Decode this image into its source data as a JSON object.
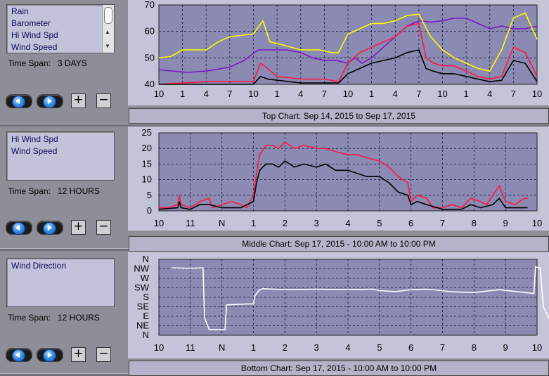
{
  "panels": [
    {
      "items": [
        "Rain",
        "Barometer",
        "Hi Wind Spd",
        "Wind Speed"
      ],
      "timespan_label": "Time Span:",
      "timespan_value": "3 DAYS",
      "chart_label": "Top Chart:  Sep 14, 2015  to  Sep 17, 2015"
    },
    {
      "items": [
        "Hi Wind Spd",
        "Wind Speed"
      ],
      "timespan_label": "Time Span:",
      "timespan_value": "12 HOURS",
      "chart_label": "Middle Chart:  Sep 17, 2015 - 10:00 AM  to  10:00 PM"
    },
    {
      "items": [
        "Wind Direction"
      ],
      "timespan_label": "Time Span:",
      "timespan_value": "12 HOURS",
      "chart_label": "Bottom Chart:  Sep 17, 2015 - 10:00 AM  to  10:00 PM"
    }
  ],
  "buttons": {
    "plus": "+",
    "minus": "−"
  },
  "icons": [
    "back-arrow-icon",
    "forward-arrow-icon"
  ],
  "colors": {
    "hi_wind": "#ff1744",
    "wind_speed": "#000000",
    "barometer": "#ffff00",
    "rain": "#1a1aff",
    "purple": "#7a18c8",
    "direction": "#ffffff"
  },
  "chart_data": [
    {
      "type": "line",
      "x_ticks": [
        "10",
        "1",
        "4",
        "7",
        "10",
        "1",
        "4",
        "7",
        "10",
        "1",
        "4",
        "7",
        "10",
        "1",
        "4",
        "7",
        "10"
      ],
      "ylim": [
        40,
        70
      ],
      "y_ticks": [
        40,
        50,
        60,
        70
      ],
      "grid": true,
      "series": [
        {
          "color": "#7a18c8",
          "points": [
            [
              0,
              45.5
            ],
            [
              0.6,
              45
            ],
            [
              1.2,
              44.5
            ],
            [
              2,
              45
            ],
            [
              3,
              46.5
            ],
            [
              3.6,
              49
            ],
            [
              4.2,
              53
            ],
            [
              4.8,
              53
            ],
            [
              5.4,
              53
            ],
            [
              6,
              52
            ],
            [
              6.5,
              50
            ],
            [
              7,
              49
            ],
            [
              7.5,
              49
            ],
            [
              8,
              48
            ],
            [
              8.3,
              50
            ],
            [
              8.6,
              48
            ],
            [
              9,
              50
            ],
            [
              9.5,
              54
            ],
            [
              10,
              58
            ],
            [
              10.5,
              62
            ],
            [
              11,
              64
            ],
            [
              11.5,
              63.5
            ],
            [
              12,
              64
            ],
            [
              12.5,
              65
            ],
            [
              13,
              65
            ],
            [
              13.5,
              63
            ],
            [
              14,
              61
            ],
            [
              14.5,
              62
            ],
            [
              15,
              61
            ],
            [
              15.5,
              61
            ],
            [
              16,
              62
            ]
          ]
        },
        {
          "color": "#ffff00",
          "points": [
            [
              0,
              50
            ],
            [
              0.5,
              50.5
            ],
            [
              1,
              53
            ],
            [
              1.5,
              53
            ],
            [
              2,
              53
            ],
            [
              2.5,
              56
            ],
            [
              3,
              58
            ],
            [
              3.5,
              58.5
            ],
            [
              4,
              59
            ],
            [
              4.4,
              64
            ],
            [
              4.7,
              56
            ],
            [
              5.2,
              55
            ],
            [
              6,
              53
            ],
            [
              6.8,
              53
            ],
            [
              7.3,
              52
            ],
            [
              7.6,
              52
            ],
            [
              8,
              59
            ],
            [
              8.5,
              61
            ],
            [
              9,
              63
            ],
            [
              9.5,
              63
            ],
            [
              10,
              64
            ],
            [
              10.5,
              66
            ],
            [
              11,
              66.5
            ],
            [
              11.5,
              58
            ],
            [
              12,
              53
            ],
            [
              12.5,
              50
            ],
            [
              13,
              48
            ],
            [
              13.5,
              46
            ],
            [
              14,
              45
            ],
            [
              14.5,
              53
            ],
            [
              15,
              65
            ],
            [
              15.5,
              67
            ],
            [
              16,
              57
            ]
          ]
        },
        {
          "color": "#ff1744",
          "points": [
            [
              0,
              40
            ],
            [
              1,
              40.5
            ],
            [
              2,
              41
            ],
            [
              3,
              41
            ],
            [
              4,
              41
            ],
            [
              4.3,
              48
            ],
            [
              4.6,
              46
            ],
            [
              5,
              43
            ],
            [
              6,
              42
            ],
            [
              7,
              42
            ],
            [
              7.6,
              41
            ],
            [
              8,
              48
            ],
            [
              8.5,
              52
            ],
            [
              9,
              54
            ],
            [
              9.5,
              56
            ],
            [
              10,
              58
            ],
            [
              10.5,
              62
            ],
            [
              11,
              63
            ],
            [
              11.3,
              50
            ],
            [
              11.6,
              48
            ],
            [
              12,
              47
            ],
            [
              12.5,
              47
            ],
            [
              13,
              45
            ],
            [
              13.5,
              43
            ],
            [
              14,
              42
            ],
            [
              14.5,
              43
            ],
            [
              15,
              54
            ],
            [
              15.5,
              52
            ],
            [
              16,
              43
            ]
          ]
        },
        {
          "color": "#000000",
          "points": [
            [
              0,
              40
            ],
            [
              2,
              40
            ],
            [
              4,
              40
            ],
            [
              4.3,
              43
            ],
            [
              4.6,
              42
            ],
            [
              6,
              40.5
            ],
            [
              7.6,
              40.5
            ],
            [
              8,
              44
            ],
            [
              8.5,
              46
            ],
            [
              9,
              48
            ],
            [
              9.5,
              49
            ],
            [
              10,
              50
            ],
            [
              10.5,
              52
            ],
            [
              11,
              53
            ],
            [
              11.3,
              46
            ],
            [
              11.6,
              45
            ],
            [
              12,
              44
            ],
            [
              12.5,
              44
            ],
            [
              13,
              43
            ],
            [
              13.5,
              42
            ],
            [
              14,
              41
            ],
            [
              14.5,
              41.5
            ],
            [
              15,
              49
            ],
            [
              15.5,
              48
            ],
            [
              16,
              41
            ]
          ]
        }
      ]
    },
    {
      "type": "line",
      "x_ticks": [
        "10",
        "11",
        "N",
        "1",
        "2",
        "3",
        "4",
        "5",
        "6",
        "7",
        "8",
        "9",
        "10"
      ],
      "ylim": [
        0,
        25
      ],
      "y_ticks": [
        0,
        5,
        10,
        15,
        20,
        25
      ],
      "grid": true,
      "series": [
        {
          "color": "#ff1744",
          "points": [
            [
              0,
              1
            ],
            [
              0.3,
              1
            ],
            [
              0.6,
              2
            ],
            [
              0.65,
              5
            ],
            [
              0.7,
              2
            ],
            [
              1,
              1
            ],
            [
              1.3,
              3
            ],
            [
              1.6,
              4
            ],
            [
              1.7,
              1
            ],
            [
              2,
              2
            ],
            [
              2.3,
              3
            ],
            [
              2.6,
              2
            ],
            [
              2.8,
              1
            ],
            [
              3,
              5
            ],
            [
              3.1,
              12
            ],
            [
              3.2,
              18
            ],
            [
              3.4,
              21
            ],
            [
              3.6,
              21
            ],
            [
              3.8,
              20
            ],
            [
              4,
              22
            ],
            [
              4.3,
              20
            ],
            [
              4.6,
              21
            ],
            [
              5,
              20
            ],
            [
              5.3,
              20
            ],
            [
              5.6,
              19
            ],
            [
              6,
              18
            ],
            [
              6.3,
              18
            ],
            [
              6.6,
              17
            ],
            [
              7,
              16
            ],
            [
              7.3,
              14
            ],
            [
              7.6,
              11
            ],
            [
              7.9,
              9
            ],
            [
              8,
              3
            ],
            [
              8.2,
              5
            ],
            [
              8.5,
              4
            ],
            [
              8.7,
              1
            ],
            [
              9,
              1
            ],
            [
              9.3,
              2
            ],
            [
              9.6,
              1
            ],
            [
              9.9,
              4
            ],
            [
              10.2,
              3
            ],
            [
              10.4,
              2
            ],
            [
              10.6,
              5
            ],
            [
              10.8,
              8
            ],
            [
              11,
              3
            ],
            [
              11.3,
              2
            ],
            [
              11.6,
              4
            ],
            [
              11.7,
              4
            ]
          ]
        },
        {
          "color": "#000000",
          "points": [
            [
              0,
              0.5
            ],
            [
              0.6,
              1
            ],
            [
              0.65,
              3
            ],
            [
              0.7,
              1
            ],
            [
              1,
              0.5
            ],
            [
              1.3,
              2
            ],
            [
              1.6,
              2
            ],
            [
              2,
              1
            ],
            [
              2.6,
              1
            ],
            [
              3,
              3
            ],
            [
              3.1,
              9
            ],
            [
              3.2,
              13
            ],
            [
              3.4,
              15
            ],
            [
              3.6,
              15
            ],
            [
              3.8,
              14
            ],
            [
              4,
              16
            ],
            [
              4.3,
              14
            ],
            [
              4.6,
              15
            ],
            [
              5,
              14
            ],
            [
              5.3,
              15
            ],
            [
              5.6,
              13
            ],
            [
              6,
              13
            ],
            [
              6.3,
              12
            ],
            [
              6.6,
              11
            ],
            [
              7,
              11
            ],
            [
              7.3,
              9
            ],
            [
              7.6,
              6
            ],
            [
              7.9,
              5
            ],
            [
              8,
              2
            ],
            [
              8.2,
              3
            ],
            [
              8.5,
              2
            ],
            [
              9,
              0.5
            ],
            [
              9.6,
              0.5
            ],
            [
              9.9,
              2
            ],
            [
              10.2,
              1
            ],
            [
              10.6,
              2
            ],
            [
              10.8,
              4
            ],
            [
              11,
              1
            ],
            [
              11.5,
              1
            ],
            [
              11.7,
              1
            ]
          ]
        }
      ]
    },
    {
      "type": "line",
      "x_ticks": [
        "10",
        "11",
        "N",
        "1",
        "2",
        "3",
        "4",
        "5",
        "6",
        "7",
        "8",
        "9",
        "10"
      ],
      "y_ticks": [
        "N",
        "NW",
        "W",
        "SW",
        "S",
        "SE",
        "E",
        "NE",
        "N"
      ],
      "ylim": [
        0,
        8
      ],
      "grid": true,
      "series": [
        {
          "color": "#ffffff",
          "points": [
            [
              0.4,
              7.1
            ],
            [
              1,
              7.05
            ],
            [
              1.4,
              7.1
            ],
            [
              1.45,
              1.8
            ],
            [
              1.6,
              0.6
            ],
            [
              1.9,
              0.6
            ],
            [
              2.1,
              0.6
            ],
            [
              2.15,
              3.2
            ],
            [
              2.8,
              3.3
            ],
            [
              3.0,
              3.3
            ],
            [
              3.05,
              4.2
            ],
            [
              3.2,
              4.8
            ],
            [
              3.3,
              4.9
            ],
            [
              4,
              4.8
            ],
            [
              5,
              4.85
            ],
            [
              6,
              4.8
            ],
            [
              6.8,
              4.85
            ],
            [
              7,
              4.7
            ],
            [
              7.5,
              4.6
            ],
            [
              8,
              4.8
            ],
            [
              8.5,
              4.85
            ],
            [
              9,
              4.7
            ],
            [
              9.2,
              4.6
            ],
            [
              10,
              4.5
            ],
            [
              10.8,
              4.8
            ],
            [
              11.9,
              4.4
            ],
            [
              11.95,
              7.2
            ],
            [
              12.1,
              7.1
            ],
            [
              12.2,
              3
            ],
            [
              12.5,
              1
            ],
            [
              12.7,
              2.5
            ],
            [
              12.8,
              7.6
            ],
            [
              12.9,
              2
            ],
            [
              13.2,
              0.1
            ],
            [
              13.6,
              0.1
            ],
            [
              13.8,
              1
            ],
            [
              14,
              2
            ]
          ]
        }
      ]
    }
  ]
}
